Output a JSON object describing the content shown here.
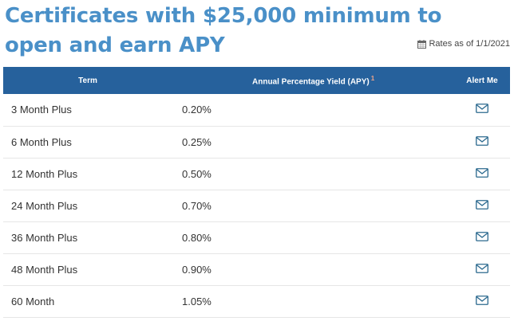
{
  "header": {
    "title": "Certificates with $25,000 minimum to open and earn APY",
    "rates_as_of": "Rates as of 1/1/2021"
  },
  "table": {
    "columns": {
      "term": "Term",
      "apy": "Annual Percentage Yield (APY)",
      "apy_footnote": "1",
      "alert": "Alert Me"
    },
    "rows": [
      {
        "term": "3 Month Plus",
        "apy": "0.20%"
      },
      {
        "term": "6 Month Plus",
        "apy": "0.25%"
      },
      {
        "term": "12 Month Plus",
        "apy": "0.50%"
      },
      {
        "term": "24 Month Plus",
        "apy": "0.70%"
      },
      {
        "term": "36 Month Plus",
        "apy": "0.80%"
      },
      {
        "term": "48 Month Plus",
        "apy": "0.90%"
      },
      {
        "term": "60 Month",
        "apy": "1.05%"
      }
    ]
  },
  "icons": {
    "calendar": "calendar-icon",
    "alert": "envelope-icon"
  },
  "colors": {
    "title": "#4a90c8",
    "header_bg": "#26619c",
    "icon": "#2c6a8f",
    "footnote": "#f0a58a"
  }
}
